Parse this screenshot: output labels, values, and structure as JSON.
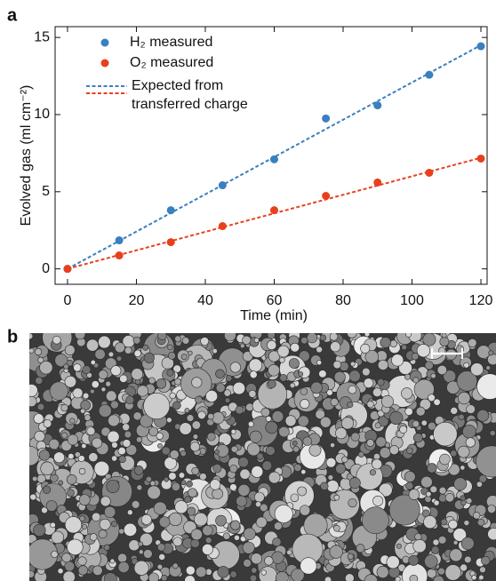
{
  "panel_a_label": "a",
  "panel_b_label": "b",
  "chart_data": {
    "type": "scatter",
    "xlabel": "Time (min)",
    "ylabel": "Evolved gas (ml cm⁻²)",
    "xlim": [
      -3.6,
      121.8
    ],
    "ylim": [
      -1.0,
      15.7
    ],
    "xticks": [
      0,
      20,
      40,
      60,
      80,
      100,
      120
    ],
    "yticks": [
      0,
      5,
      10,
      15
    ],
    "x": [
      0,
      15,
      30,
      45,
      60,
      75,
      90,
      105,
      120
    ],
    "series": [
      {
        "name": "H₂ measured",
        "color": "#3a7fbf",
        "values": [
          0,
          1.85,
          3.8,
          5.42,
          7.1,
          9.75,
          10.6,
          12.58,
          14.43
        ]
      },
      {
        "name": "O₂ measured",
        "color": "#e8401c",
        "values": [
          0,
          0.87,
          1.73,
          2.77,
          3.8,
          4.73,
          5.6,
          6.23,
          7.15
        ]
      }
    ],
    "fit_label": "Expected from\ntransferred charge",
    "fits": [
      {
        "color": "#3a7fbf",
        "x": [
          0,
          120
        ],
        "values": [
          0,
          14.5
        ]
      },
      {
        "color": "#e8401c",
        "x": [
          0,
          120
        ],
        "values": [
          0,
          7.2
        ]
      }
    ]
  }
}
